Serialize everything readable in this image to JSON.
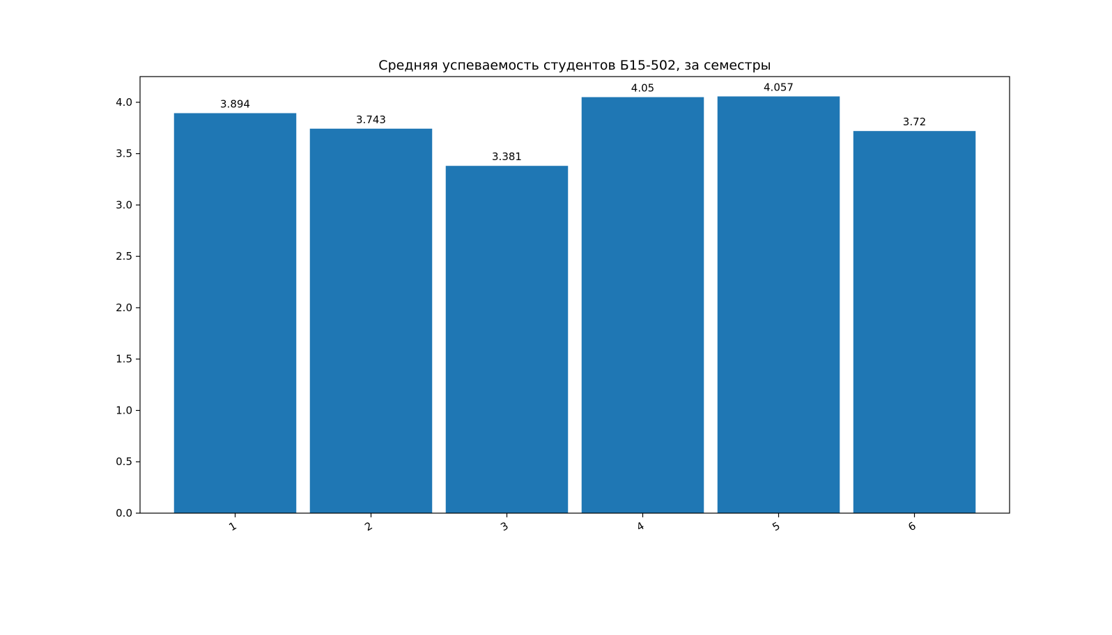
{
  "chart_data": {
    "type": "bar",
    "title": "Средняя успеваемость студентов Б15-502, за семестры",
    "xlabel": "",
    "ylabel": "",
    "categories": [
      "1",
      "2",
      "3",
      "4",
      "5",
      "6"
    ],
    "values": [
      3.894,
      3.743,
      3.381,
      4.05,
      4.057,
      3.72
    ],
    "value_labels": [
      "3.894",
      "3.743",
      "3.381",
      "4.05",
      "4.057",
      "3.72"
    ],
    "ylim": [
      0,
      4.25
    ],
    "yticks": [
      0.0,
      0.5,
      1.0,
      1.5,
      2.0,
      2.5,
      3.0,
      3.5,
      4.0
    ],
    "ytick_labels": [
      "0.0",
      "0.5",
      "1.0",
      "1.5",
      "2.0",
      "2.5",
      "3.0",
      "3.5",
      "4.0"
    ],
    "bar_color": "#1f77b4",
    "grid": false,
    "legend": "none"
  }
}
